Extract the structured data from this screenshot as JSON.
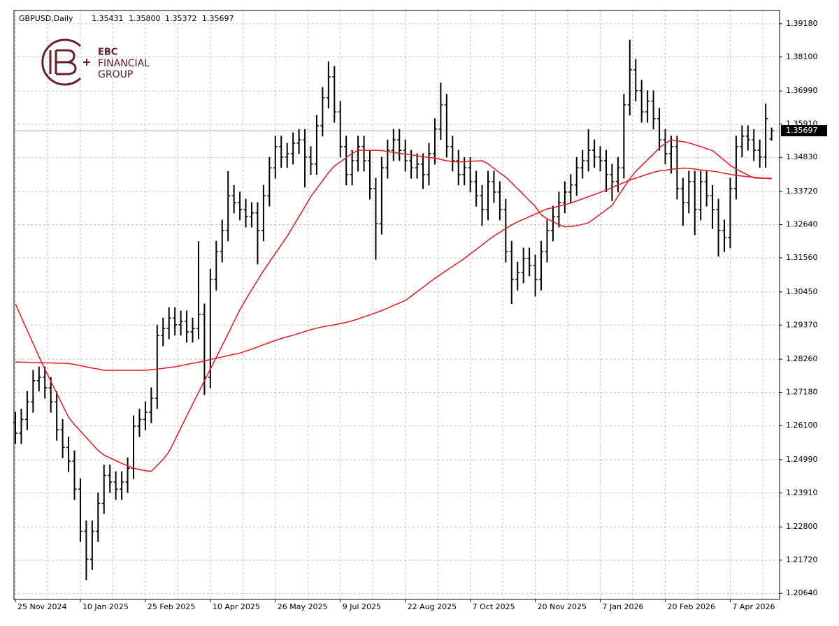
{
  "chart_data": {
    "type": "ohlc",
    "header": {
      "symbol": "GBPUSD,Daily",
      "ohlc": [
        "1.35431",
        "1.35800",
        "1.35372",
        "1.35697"
      ]
    },
    "logo": {
      "lines": [
        "EBC",
        "FINANCIAL",
        "GROUP"
      ]
    },
    "bar_color": "#000000",
    "grid": true,
    "ylim": [
      1.2044,
      1.3961
    ],
    "yticks": [
      {
        "value": 1.3918,
        "label": "1.39180"
      },
      {
        "value": 1.381,
        "label": "1.38100"
      },
      {
        "value": 1.3699,
        "label": "1.36990"
      },
      {
        "value": 1.3591,
        "label": "1.35910"
      },
      {
        "value": 1.3483,
        "label": "1.34830"
      },
      {
        "value": 1.3372,
        "label": "1.33720"
      },
      {
        "value": 1.3264,
        "label": "1.32640"
      },
      {
        "value": 1.3156,
        "label": "1.31560"
      },
      {
        "value": 1.3045,
        "label": "1.30450"
      },
      {
        "value": 1.2937,
        "label": "1.29370"
      },
      {
        "value": 1.2826,
        "label": "1.28260"
      },
      {
        "value": 1.2718,
        "label": "1.27180"
      },
      {
        "value": 1.261,
        "label": "1.26100"
      },
      {
        "value": 1.2499,
        "label": "1.24990"
      },
      {
        "value": 1.2391,
        "label": "1.23910"
      },
      {
        "value": 1.228,
        "label": "1.22800"
      },
      {
        "value": 1.2172,
        "label": "1.21720"
      },
      {
        "value": 1.2064,
        "label": "1.20640"
      }
    ],
    "current_price": {
      "value": 1.35697,
      "label": "1.35697"
    },
    "categories": [
      "25 Nov 2024",
      null,
      null,
      null,
      null,
      null,
      null,
      null,
      null,
      null,
      null,
      "10 Jan 2025",
      null,
      null,
      null,
      null,
      null,
      null,
      null,
      null,
      null,
      null,
      "25 Feb 2025",
      null,
      null,
      null,
      null,
      null,
      null,
      null,
      null,
      null,
      null,
      "10 Apr 2025",
      null,
      null,
      null,
      null,
      null,
      null,
      null,
      null,
      null,
      null,
      "26 May 2025",
      null,
      null,
      null,
      null,
      null,
      null,
      null,
      null,
      null,
      null,
      "9 Jul 2025",
      null,
      null,
      null,
      null,
      null,
      null,
      null,
      null,
      null,
      null,
      "22 Aug 2025",
      null,
      null,
      null,
      null,
      null,
      null,
      null,
      null,
      null,
      null,
      "7 Oct 2025",
      null,
      null,
      null,
      null,
      null,
      null,
      null,
      null,
      null,
      null,
      "20 Nov 2025",
      null,
      null,
      null,
      null,
      null,
      null,
      null,
      null,
      null,
      null,
      "7 Jan 2026",
      null,
      null,
      null,
      null,
      null,
      null,
      null,
      null,
      null,
      null,
      "20 Feb 2026",
      null,
      null,
      null,
      null,
      null,
      null,
      null,
      null,
      null,
      null,
      "7 Apr 2026",
      null,
      null,
      null,
      null,
      null,
      null,
      null
    ],
    "open": [
      1.262,
      1.2585,
      1.263,
      1.2687,
      1.2756,
      1.2767,
      1.2733,
      1.2687,
      1.2596,
      1.2539,
      1.2494,
      1.2403,
      1.2266,
      1.2175,
      1.2266,
      1.2357,
      1.2448,
      1.2426,
      1.2403,
      1.2426,
      1.2471,
      1.2608,
      1.263,
      1.2653,
      1.2699,
      1.2903,
      1.2926,
      1.296,
      1.2938,
      1.2949,
      1.2915,
      1.2926,
      1.2972,
      1.2767,
      1.3085,
      1.3176,
      1.3245,
      1.3358,
      1.3336,
      1.3313,
      1.329,
      1.3302,
      1.3245,
      1.3358,
      1.3449,
      1.3518,
      1.3484,
      1.3495,
      1.3529,
      1.354,
      1.3484,
      1.3461,
      1.3586,
      1.3677,
      1.3745,
      1.3631,
      1.3518,
      1.3427,
      1.3472,
      1.3518,
      1.3472,
      1.3381,
      1.3267,
      1.3449,
      1.3506,
      1.354,
      1.3506,
      1.3472,
      1.3449,
      1.3461,
      1.3427,
      1.3495,
      1.3575,
      1.3654,
      1.3518,
      1.3472,
      1.3427,
      1.3449,
      1.3404,
      1.3358,
      1.3313,
      1.3404,
      1.337,
      1.3313,
      1.3176,
      1.3085,
      1.3108,
      1.3154,
      1.3131,
      1.3085,
      1.3176,
      1.3245,
      1.329,
      1.3336,
      1.337,
      1.3393,
      1.3449,
      1.3472,
      1.3506,
      1.3484,
      1.3472,
      1.3427,
      1.3404,
      1.3449,
      1.3654,
      1.3768,
      1.37,
      1.3631,
      1.3666,
      1.3609,
      1.354,
      1.3495,
      1.3518,
      1.3381,
      1.3336,
      1.3404,
      1.3313,
      1.3404,
      1.3358,
      1.3313,
      1.3245,
      1.3222,
      1.3381,
      1.3518,
      1.3552,
      1.354,
      1.3506,
      1.3484,
      1.35431
    ],
    "high": [
      1.2655,
      1.2665,
      1.2722,
      1.2791,
      1.2802,
      1.2802,
      1.2768,
      1.2722,
      1.2631,
      1.2574,
      1.2529,
      1.2438,
      1.2301,
      1.2301,
      1.2392,
      1.2483,
      1.2483,
      1.2461,
      1.2461,
      1.2506,
      1.2643,
      1.2665,
      1.2688,
      1.2734,
      1.2938,
      1.2961,
      1.2995,
      1.2995,
      1.2984,
      1.2984,
      1.2961,
      1.321,
      1.3007,
      1.312,
      1.3211,
      1.328,
      1.3438,
      1.3393,
      1.3371,
      1.3348,
      1.3337,
      1.3337,
      1.3393,
      1.3484,
      1.3553,
      1.3553,
      1.353,
      1.3564,
      1.3575,
      1.3575,
      1.3519,
      1.3621,
      1.3712,
      1.3795,
      1.378,
      1.3666,
      1.3553,
      1.3507,
      1.3553,
      1.3553,
      1.3507,
      1.3416,
      1.3484,
      1.3541,
      1.3575,
      1.3575,
      1.3541,
      1.3507,
      1.3496,
      1.3496,
      1.353,
      1.361,
      1.3726,
      1.3689,
      1.3553,
      1.3507,
      1.3484,
      1.3484,
      1.3439,
      1.3393,
      1.3439,
      1.3439,
      1.3405,
      1.3348,
      1.3211,
      1.3143,
      1.3189,
      1.3189,
      1.3166,
      1.3211,
      1.328,
      1.3325,
      1.3371,
      1.3405,
      1.3428,
      1.3484,
      1.3507,
      1.3575,
      1.3541,
      1.3519,
      1.3507,
      1.3462,
      1.3484,
      1.3689,
      1.3866,
      1.3803,
      1.3735,
      1.3701,
      1.3701,
      1.3644,
      1.3575,
      1.3553,
      1.3553,
      1.3416,
      1.3439,
      1.3439,
      1.3439,
      1.3439,
      1.3393,
      1.3348,
      1.328,
      1.3416,
      1.3553,
      1.3587,
      1.3587,
      1.3575,
      1.3541,
      1.3658,
      1.358
    ],
    "low": [
      1.255,
      1.255,
      1.2595,
      1.2652,
      1.2721,
      1.2698,
      1.2652,
      1.2561,
      1.2504,
      1.2459,
      1.2368,
      1.2231,
      1.2107,
      1.214,
      1.2231,
      1.2322,
      1.2391,
      1.2368,
      1.2368,
      1.2391,
      1.2436,
      1.2573,
      1.2595,
      1.2618,
      1.2664,
      1.2868,
      1.2891,
      1.2903,
      1.2903,
      1.288,
      1.288,
      1.2891,
      1.271,
      1.2732,
      1.305,
      1.3141,
      1.321,
      1.3301,
      1.3278,
      1.3255,
      1.3255,
      1.3135,
      1.321,
      1.3323,
      1.3414,
      1.3449,
      1.3449,
      1.346,
      1.3494,
      1.3385,
      1.3426,
      1.3426,
      1.3551,
      1.3642,
      1.3596,
      1.3483,
      1.3392,
      1.3392,
      1.3437,
      1.3437,
      1.3346,
      1.315,
      1.3232,
      1.3414,
      1.3471,
      1.3471,
      1.3437,
      1.3414,
      1.3414,
      1.338,
      1.3392,
      1.346,
      1.354,
      1.3483,
      1.3437,
      1.3392,
      1.3392,
      1.3369,
      1.3323,
      1.326,
      1.3278,
      1.3335,
      1.3278,
      1.3141,
      1.3006,
      1.305,
      1.3073,
      1.3096,
      1.303,
      1.305,
      1.3141,
      1.321,
      1.3255,
      1.3301,
      1.3335,
      1.3358,
      1.3414,
      1.3437,
      1.3449,
      1.3437,
      1.337,
      1.334,
      1.3369,
      1.3414,
      1.3619,
      1.3665,
      1.3596,
      1.3596,
      1.3574,
      1.3505,
      1.346,
      1.343,
      1.3346,
      1.326,
      1.3301,
      1.323,
      1.3278,
      1.3323,
      1.325,
      1.316,
      1.3175,
      1.3187,
      1.3346,
      1.3483,
      1.3505,
      1.3471,
      1.3449,
      1.3449,
      1.35372
    ],
    "close": [
      1.2585,
      1.263,
      1.2687,
      1.2756,
      1.2767,
      1.2733,
      1.2687,
      1.2596,
      1.2539,
      1.2494,
      1.2403,
      1.2266,
      1.2175,
      1.2266,
      1.2357,
      1.2448,
      1.2426,
      1.2403,
      1.2426,
      1.2471,
      1.2608,
      1.263,
      1.2653,
      1.2699,
      1.2903,
      1.2926,
      1.296,
      1.2938,
      1.2949,
      1.2915,
      1.2926,
      1.2972,
      1.2767,
      1.3085,
      1.3176,
      1.3245,
      1.3358,
      1.3336,
      1.3313,
      1.329,
      1.3302,
      1.3245,
      1.3358,
      1.3449,
      1.3518,
      1.3484,
      1.3495,
      1.3529,
      1.354,
      1.3484,
      1.3461,
      1.3586,
      1.3677,
      1.3745,
      1.3631,
      1.3518,
      1.3427,
      1.3472,
      1.3518,
      1.3472,
      1.3381,
      1.3267,
      1.3449,
      1.3506,
      1.354,
      1.3506,
      1.3472,
      1.3449,
      1.3461,
      1.3427,
      1.3495,
      1.3575,
      1.3654,
      1.3518,
      1.3472,
      1.3427,
      1.3449,
      1.3404,
      1.3358,
      1.3313,
      1.3404,
      1.337,
      1.3313,
      1.3176,
      1.3085,
      1.3108,
      1.3154,
      1.3131,
      1.3085,
      1.3176,
      1.3245,
      1.329,
      1.3336,
      1.337,
      1.3393,
      1.3449,
      1.3472,
      1.3506,
      1.3484,
      1.3472,
      1.3427,
      1.3404,
      1.3449,
      1.3654,
      1.3768,
      1.37,
      1.3631,
      1.3666,
      1.3609,
      1.354,
      1.3495,
      1.3518,
      1.3381,
      1.3336,
      1.3404,
      1.3313,
      1.3404,
      1.3358,
      1.3313,
      1.3245,
      1.3222,
      1.3381,
      1.3518,
      1.3552,
      1.354,
      1.3506,
      1.3484,
      1.3609,
      1.35697
    ],
    "ma": [
      {
        "color": "#e8161c",
        "values": [
          1.3006,
          1.2963,
          1.292,
          1.2877,
          1.2834,
          1.2793,
          1.2754,
          1.2715,
          1.2676,
          1.2637,
          1.2613,
          1.2592,
          1.2571,
          1.255,
          1.2529,
          1.2514,
          1.2505,
          1.2496,
          1.2487,
          1.2479,
          1.2471,
          1.2467,
          1.2463,
          1.2461,
          1.248,
          1.25,
          1.2525,
          1.2563,
          1.2602,
          1.2641,
          1.268,
          1.2718,
          1.2756,
          1.2794,
          1.2832,
          1.287,
          1.2909,
          1.2948,
          1.2987,
          1.302,
          1.3052,
          1.3083,
          1.3114,
          1.3142,
          1.317,
          1.3198,
          1.3226,
          1.3258,
          1.329,
          1.3322,
          1.3355,
          1.3381,
          1.3407,
          1.3433,
          1.3455,
          1.3468,
          1.3482,
          1.3496,
          1.3506,
          1.3506,
          1.3506,
          1.3506,
          1.3505,
          1.3502,
          1.3499,
          1.3496,
          1.3494,
          1.3491,
          1.3488,
          1.3485,
          1.3483,
          1.348,
          1.3476,
          1.3472,
          1.3469,
          1.3468,
          1.3469,
          1.347,
          1.3471,
          1.3472,
          1.3462,
          1.3447,
          1.3432,
          1.3419,
          1.34,
          1.3381,
          1.3362,
          1.3342,
          1.3323,
          1.3296,
          1.3283,
          1.3274,
          1.3264,
          1.3257,
          1.3258,
          1.3261,
          1.3265,
          1.327,
          1.3284,
          1.3298,
          1.3312,
          1.3327,
          1.3356,
          1.3385,
          1.3413,
          1.3437,
          1.3456,
          1.3475,
          1.3494,
          1.3514,
          1.3528,
          1.354,
          1.3537,
          1.3534,
          1.353,
          1.3524,
          1.3518,
          1.3511,
          1.3505,
          1.3489,
          1.3473,
          1.3457,
          1.3445,
          1.3435,
          1.3425,
          1.3416,
          1.3415,
          1.3415,
          1.3415
        ]
      },
      {
        "color": "#e8161c",
        "values": [
          1.2817,
          1.2816,
          1.2816,
          1.2815,
          1.2815,
          1.2814,
          1.2814,
          1.2813,
          1.2813,
          1.2812,
          1.2809,
          1.2805,
          1.2801,
          1.2797,
          1.2794,
          1.279,
          1.279,
          1.279,
          1.279,
          1.279,
          1.279,
          1.279,
          1.279,
          1.2792,
          1.2794,
          1.2796,
          1.2799,
          1.2801,
          1.2805,
          1.2809,
          1.2813,
          1.2816,
          1.282,
          1.2825,
          1.2829,
          1.2833,
          1.2838,
          1.2842,
          1.2846,
          1.2852,
          1.2859,
          1.2866,
          1.2873,
          1.288,
          1.2887,
          1.2893,
          1.2899,
          1.2904,
          1.291,
          1.2916,
          1.2922,
          1.2927,
          1.2931,
          1.2935,
          1.2938,
          1.2942,
          1.2946,
          1.2951,
          1.2957,
          1.2964,
          1.297,
          1.2977,
          1.2984,
          1.2992,
          1.3001,
          1.3009,
          1.3017,
          1.3031,
          1.3046,
          1.306,
          1.3075,
          1.3089,
          1.3102,
          1.3115,
          1.3128,
          1.3141,
          1.3154,
          1.3169,
          1.3183,
          1.3198,
          1.3213,
          1.3227,
          1.3239,
          1.3251,
          1.3263,
          1.3273,
          1.3281,
          1.329,
          1.3298,
          1.3307,
          1.3315,
          1.3319,
          1.3324,
          1.3329,
          1.3334,
          1.3341,
          1.3348,
          1.3355,
          1.3362,
          1.3369,
          1.3376,
          1.3385,
          1.3393,
          1.3401,
          1.3409,
          1.3415,
          1.3422,
          1.3428,
          1.3434,
          1.3439,
          1.3441,
          1.3444,
          1.3446,
          1.3448,
          1.3447,
          1.3445,
          1.3442,
          1.344,
          1.3438,
          1.3435,
          1.3431,
          1.3428,
          1.3424,
          1.3422,
          1.342,
          1.3418,
          1.3416,
          1.3415,
          1.3413
        ]
      }
    ]
  }
}
